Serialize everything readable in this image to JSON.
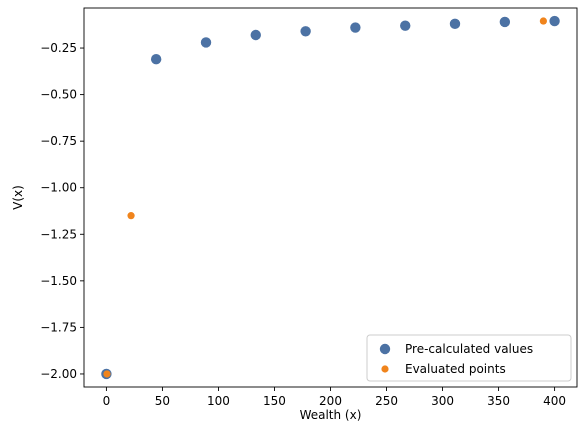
{
  "chart_data": {
    "type": "scatter",
    "title": "",
    "xlabel": "Wealth (x)",
    "ylabel": "V(x)",
    "xlim": [
      -20,
      420
    ],
    "ylim": [
      -2.07,
      -0.035
    ],
    "xticks": [
      0,
      50,
      100,
      150,
      200,
      250,
      300,
      350,
      400
    ],
    "yticks": [
      -2.0,
      -1.75,
      -1.5,
      -1.25,
      -1.0,
      -0.75,
      -0.5,
      -0.25
    ],
    "ytick_labels": [
      "−2.00",
      "−1.75",
      "−1.50",
      "−1.25",
      "−1.00",
      "−0.75",
      "−0.50",
      "−0.25"
    ],
    "grid": false,
    "legend_position": "lower-right",
    "series": [
      {
        "name": "Pre-calculated values",
        "color": "#4c72a4",
        "x": [
          0,
          44.4,
          88.9,
          133.3,
          177.8,
          222.2,
          266.7,
          311.1,
          355.6,
          400
        ],
        "y": [
          -2.0,
          -0.31,
          -0.22,
          -0.18,
          -0.16,
          -0.14,
          -0.13,
          -0.12,
          -0.11,
          -0.105
        ]
      },
      {
        "name": "Evaluated points",
        "color": "#f0841c",
        "x": [
          0.5,
          22,
          390
        ],
        "y": [
          -2.0,
          -1.15,
          -0.105
        ]
      }
    ]
  }
}
